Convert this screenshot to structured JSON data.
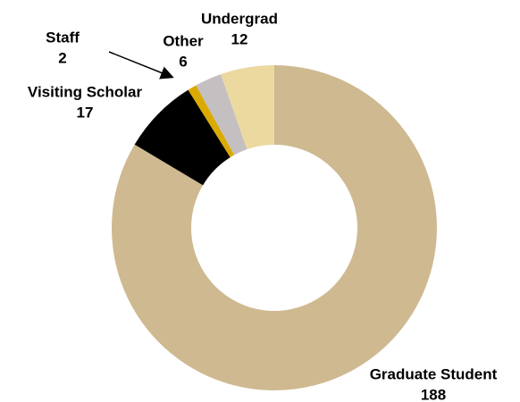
{
  "chart_data": {
    "type": "donut",
    "categories": [
      "Graduate Student",
      "Visiting Scholar",
      "Staff",
      "Other",
      "Undergrad"
    ],
    "values": [
      188,
      17,
      2,
      6,
      12
    ],
    "colors": [
      "#cfb991",
      "#000000",
      "#daaa00",
      "#c4bfc0",
      "#ebd99f"
    ]
  }
}
